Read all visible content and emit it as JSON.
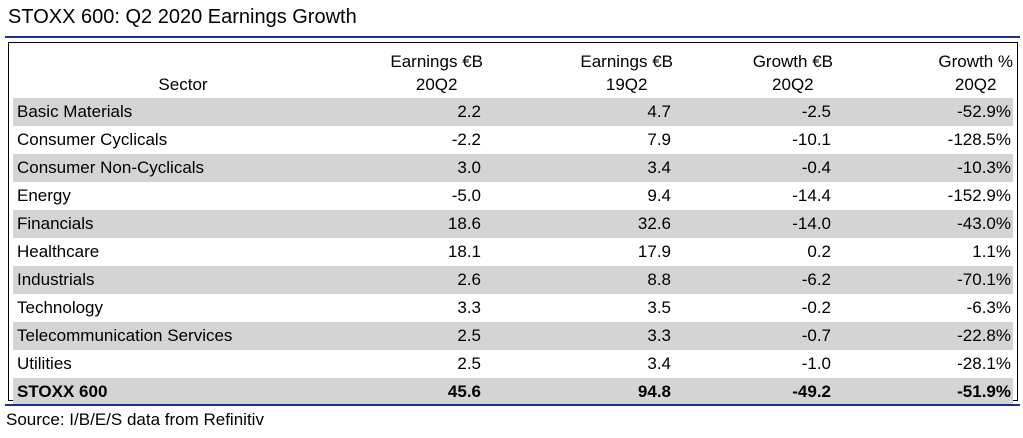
{
  "title": "STOXX 600: Q2 2020 Earnings Growth",
  "source": "Source: I/B/E/S data from Refinitiv",
  "colors": {
    "rule": "#1f2f8f",
    "shaded_row": "#d4d4d4"
  },
  "chart_data": {
    "type": "table",
    "title": "STOXX 600: Q2 2020 Earnings Growth",
    "columns": [
      {
        "line1": "Sector",
        "line2": ""
      },
      {
        "line1": "Earnings €B",
        "line2": "20Q2"
      },
      {
        "line1": "Earnings €B",
        "line2": "19Q2"
      },
      {
        "line1": "Growth €B",
        "line2": "20Q2"
      },
      {
        "line1": "Growth %",
        "line2": "20Q2"
      }
    ],
    "rows": [
      {
        "sector": "Basic Materials",
        "earnings_20q2": "2.2",
        "earnings_19q2": "4.7",
        "growth_eur": "-2.5",
        "growth_pct": "-52.9%"
      },
      {
        "sector": "Consumer Cyclicals",
        "earnings_20q2": "-2.2",
        "earnings_19q2": "7.9",
        "growth_eur": "-10.1",
        "growth_pct": "-128.5%"
      },
      {
        "sector": "Consumer Non-Cyclicals",
        "earnings_20q2": "3.0",
        "earnings_19q2": "3.4",
        "growth_eur": "-0.4",
        "growth_pct": "-10.3%"
      },
      {
        "sector": "Energy",
        "earnings_20q2": "-5.0",
        "earnings_19q2": "9.4",
        "growth_eur": "-14.4",
        "growth_pct": "-152.9%"
      },
      {
        "sector": "Financials",
        "earnings_20q2": "18.6",
        "earnings_19q2": "32.6",
        "growth_eur": "-14.0",
        "growth_pct": "-43.0%"
      },
      {
        "sector": "Healthcare",
        "earnings_20q2": "18.1",
        "earnings_19q2": "17.9",
        "growth_eur": "0.2",
        "growth_pct": "1.1%"
      },
      {
        "sector": "Industrials",
        "earnings_20q2": "2.6",
        "earnings_19q2": "8.8",
        "growth_eur": "-6.2",
        "growth_pct": "-70.1%"
      },
      {
        "sector": "Technology",
        "earnings_20q2": "3.3",
        "earnings_19q2": "3.5",
        "growth_eur": "-0.2",
        "growth_pct": "-6.3%"
      },
      {
        "sector": "Telecommunication Services",
        "earnings_20q2": "2.5",
        "earnings_19q2": "3.3",
        "growth_eur": "-0.7",
        "growth_pct": "-22.8%"
      },
      {
        "sector": "Utilities",
        "earnings_20q2": "2.5",
        "earnings_19q2": "3.4",
        "growth_eur": "-1.0",
        "growth_pct": "-28.1%"
      }
    ],
    "total": {
      "sector": "STOXX 600",
      "earnings_20q2": "45.6",
      "earnings_19q2": "94.8",
      "growth_eur": "-49.2",
      "growth_pct": "-51.9%"
    }
  }
}
